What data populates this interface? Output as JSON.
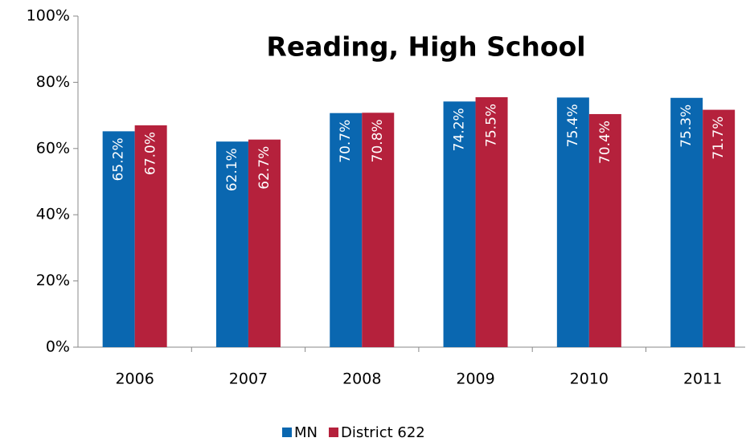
{
  "chart_data": {
    "type": "bar",
    "title": "Reading, High School",
    "categories": [
      "2006",
      "2007",
      "2008",
      "2009",
      "2010",
      "2011"
    ],
    "series": [
      {
        "name": "MN",
        "color": "#0a67b0",
        "values": [
          65.2,
          62.1,
          70.7,
          74.2,
          75.4,
          75.3
        ],
        "value_labels": [
          "65.2%",
          "62.1%",
          "70.7%",
          "74.2%",
          "75.4%",
          "75.3%"
        ]
      },
      {
        "name": "District 622",
        "color": "#b5213c",
        "values": [
          67.0,
          62.7,
          70.8,
          75.5,
          70.4,
          71.7
        ],
        "value_labels": [
          "67.0%",
          "62.7%",
          "70.8%",
          "75.5%",
          "70.4%",
          "71.7%"
        ]
      }
    ],
    "ylim": [
      0,
      100
    ],
    "yticks": [
      {
        "value": 0,
        "label": "0%"
      },
      {
        "value": 20,
        "label": "20%"
      },
      {
        "value": 40,
        "label": "40%"
      },
      {
        "value": 60,
        "label": "60%"
      },
      {
        "value": 80,
        "label": "80%"
      },
      {
        "value": 100,
        "label": "100%"
      }
    ],
    "legend": "bottom"
  }
}
